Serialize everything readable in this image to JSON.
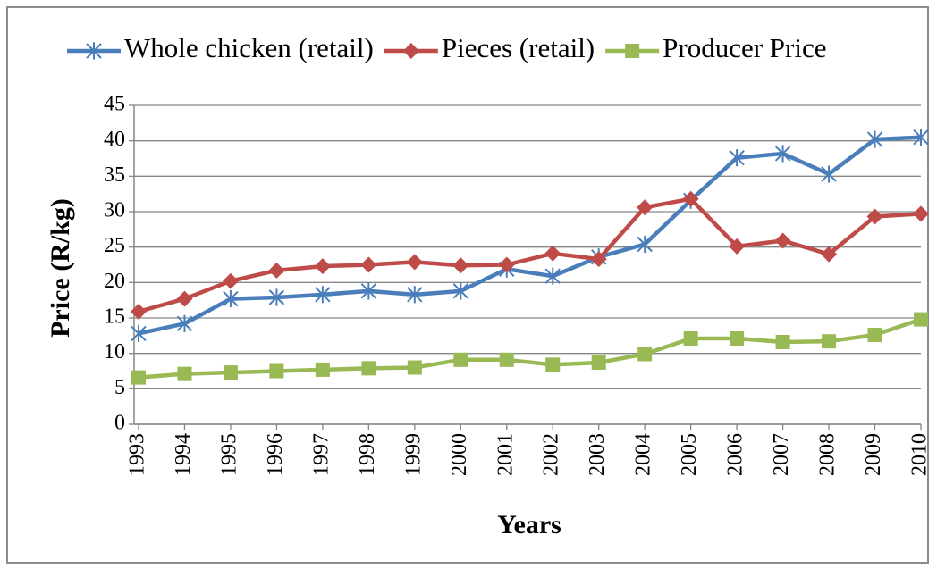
{
  "chart_data": {
    "type": "line",
    "x_label": "Years",
    "y_label": "Price (R/kg)",
    "categories": [
      "1993",
      "1994",
      "1995",
      "1996",
      "1997",
      "1998",
      "1999",
      "2000",
      "2001",
      "2002",
      "2003",
      "2004",
      "2005",
      "2006",
      "2007",
      "2008",
      "2009",
      "2010"
    ],
    "series": [
      {
        "name": "Whole chicken (retail)",
        "color": "#4a7ebb",
        "marker": "star",
        "values": [
          12.8,
          14.2,
          17.7,
          17.9,
          18.3,
          18.8,
          18.3,
          18.8,
          21.9,
          20.9,
          23.6,
          25.4,
          31.6,
          37.6,
          38.2,
          35.3,
          40.2,
          40.5
        ]
      },
      {
        "name": "Pieces (retail)",
        "color": "#be4b48",
        "marker": "diamond",
        "values": [
          15.9,
          17.7,
          20.2,
          21.7,
          22.3,
          22.5,
          22.9,
          22.4,
          22.5,
          24.1,
          23.3,
          30.6,
          31.8,
          25.1,
          25.9,
          24.0,
          29.3,
          29.7
        ]
      },
      {
        "name": "Producer Price",
        "color": "#98b954",
        "marker": "square",
        "values": [
          6.6,
          7.1,
          7.3,
          7.5,
          7.7,
          7.9,
          8.0,
          9.1,
          9.1,
          8.4,
          8.7,
          9.9,
          12.1,
          12.1,
          11.6,
          11.7,
          12.6,
          14.8
        ]
      }
    ],
    "ylim": [
      0,
      45
    ],
    "yticks": [
      0,
      5,
      10,
      15,
      20,
      25,
      30,
      35,
      40,
      45
    ],
    "grid": true,
    "legend": "top"
  }
}
